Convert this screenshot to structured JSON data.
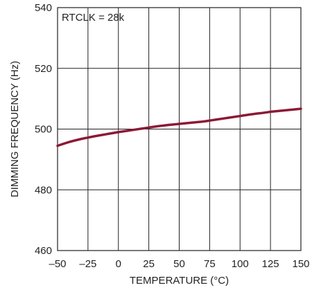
{
  "chart_data": {
    "type": "line",
    "xlabel": "TEMPERATURE (°C)",
    "ylabel": "DIMMING FREQUENCY (Hz)",
    "xlim": [
      -50,
      150
    ],
    "ylim": [
      460,
      540
    ],
    "x_ticks": [
      -50,
      -25,
      0,
      25,
      50,
      75,
      100,
      125,
      150
    ],
    "x_tick_labels": [
      "–50",
      "–25",
      "0",
      "25",
      "50",
      "75",
      "100",
      "125",
      "150"
    ],
    "y_ticks": [
      460,
      480,
      500,
      520,
      540
    ],
    "y_tick_labels": [
      "460",
      "480",
      "500",
      "520",
      "540"
    ],
    "grid": true,
    "annotation": "RTCLK = 28k",
    "series": [
      {
        "color": "#8b1a35",
        "x": [
          -50,
          -40,
          -30,
          -25,
          -20,
          -10,
          0,
          10,
          20,
          25,
          30,
          40,
          50,
          60,
          70,
          75,
          80,
          90,
          100,
          110,
          120,
          125,
          130,
          140,
          150
        ],
        "y": [
          494.5,
          495.8,
          496.8,
          497.2,
          497.6,
          498.3,
          499.0,
          499.6,
          500.2,
          500.5,
          500.8,
          501.3,
          501.7,
          502.1,
          502.5,
          502.8,
          503.1,
          503.7,
          504.3,
          504.9,
          505.4,
          505.7,
          505.9,
          506.3,
          506.7
        ]
      }
    ]
  }
}
